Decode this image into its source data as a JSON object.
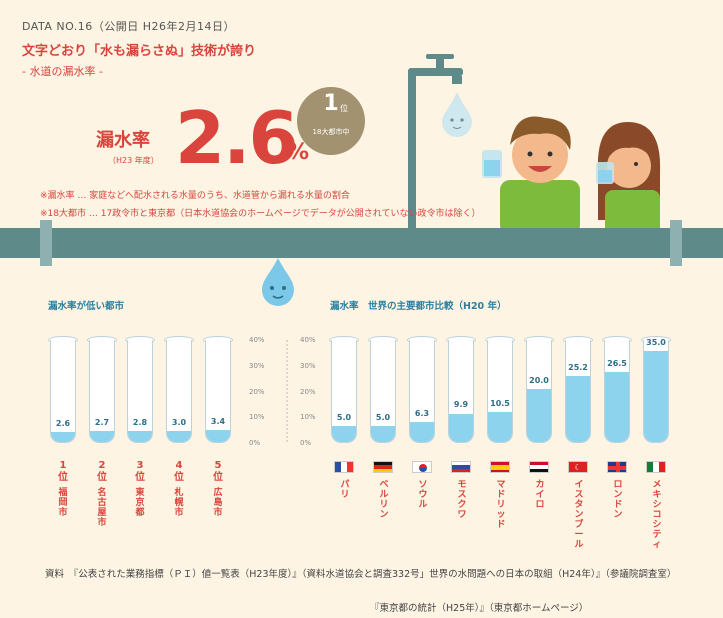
{
  "header": {
    "data_no": "DATA NO.16（公開日 H26年2月14日）",
    "headline": "文字どおり「水も漏らさぬ」技術が誇り",
    "subhead": "- 水道の漏水率 -"
  },
  "hero": {
    "label": "漏水率",
    "year": "（H23 年度）",
    "value": "2.6",
    "unit": "%",
    "rank_num": "1",
    "rank_unit": "位",
    "rank_scope": "18大都市中"
  },
  "notes": [
    "※漏水率 … 家庭などへ配水される水量のうち、水道管から漏れる水量の割合",
    "※18大都市 … 17政令市と東京都（日本水道協会のホームページでデータが公開されていない政令市は除く）"
  ],
  "colors": {
    "accent": "#d9453d",
    "water": "#8dd3ed",
    "pipe": "#5e8a8a",
    "badge": "#a39270",
    "title": "#2c7fa0"
  },
  "chart_data": [
    {
      "type": "bar",
      "title": "漏水率が低い都市",
      "ylim": [
        0,
        40
      ],
      "categories": [
        "福岡市",
        "名古屋市",
        "東京都",
        "札幌市",
        "広島市"
      ],
      "ranks": [
        "1",
        "2",
        "3",
        "4",
        "5"
      ],
      "rank_unit": "位",
      "values": [
        2.6,
        2.7,
        2.8,
        3.0,
        3.4
      ],
      "value_labels": [
        "2.6",
        "2.7",
        "2.8",
        "3.0",
        "3.4"
      ]
    },
    {
      "type": "bar",
      "title": "漏水率　世界の主要都市比較（H20 年）",
      "ylim": [
        0,
        40
      ],
      "yticks": [
        "40%",
        "30%",
        "20%",
        "10%",
        "0%"
      ],
      "categories": [
        "パリ",
        "ベルリン",
        "ソウル",
        "モスクワ",
        "マドリッド",
        "カイロ",
        "イスタンブール",
        "ロンドン",
        "メキシコシティ"
      ],
      "flags": [
        "france-flag",
        "germany-flag",
        "korea-flag",
        "russia-flag",
        "spain-flag",
        "egypt-flag",
        "turkey-flag",
        "uk-flag",
        "mexico-flag"
      ],
      "values": [
        5.0,
        5.0,
        6.3,
        9.9,
        10.5,
        20.0,
        25.2,
        26.5,
        35.0
      ],
      "value_labels": [
        "5.0",
        "5.0",
        "6.3",
        "9.9",
        "10.5",
        "20.0",
        "25.2",
        "26.5",
        "35.0"
      ]
    }
  ],
  "sources": {
    "line1": "資料　『公表された業務指標（ＰＩ）値一覧表（H23年度）』（資料水道協会と調査332号」世界の水問題への日本の取組（H24年）』（参議院調査室）",
    "line2": "『東京都の統計（H25年）』（東京都ホームページ）"
  }
}
